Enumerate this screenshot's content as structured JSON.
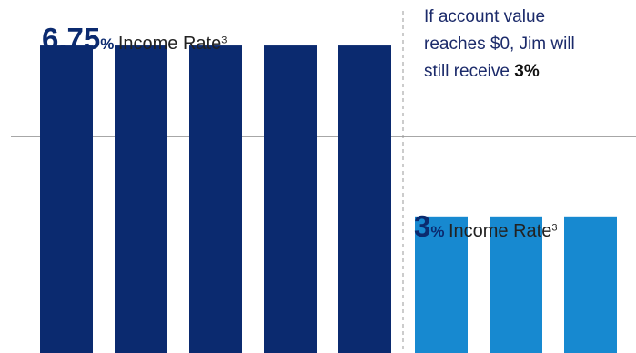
{
  "chart_data": {
    "type": "bar",
    "colors": {
      "high": "#0b2a6f",
      "low": "#1789d0",
      "reference": "#8a8a8a",
      "divider": "#9a9a9a"
    },
    "series": [
      {
        "label": {
          "value": "6.75",
          "unit": "%",
          "text": "Income Rate",
          "footnote": "3"
        },
        "color_key": "high",
        "values": [
          6.75,
          6.75,
          6.75,
          6.75,
          6.75
        ]
      },
      {
        "label": {
          "value": "3",
          "unit": "%",
          "text": "Income Rate",
          "footnote": "3"
        },
        "color_key": "low",
        "values": [
          3,
          3,
          3
        ]
      }
    ],
    "reference_line": 4.75,
    "ylim": [
      0,
      7.75
    ],
    "note": {
      "lines": [
        "If account value",
        "reaches $0, Jim will",
        "still receive "
      ],
      "emphasis": "3%"
    }
  }
}
